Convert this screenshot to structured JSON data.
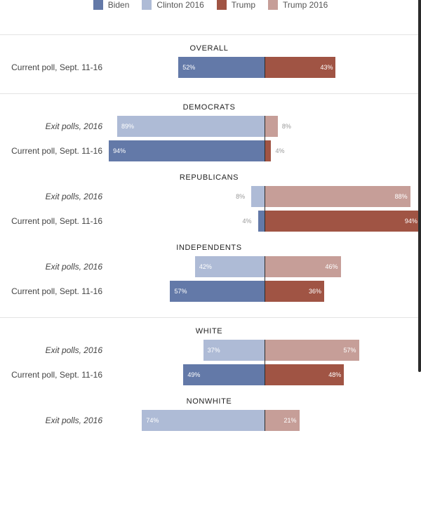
{
  "legend": [
    {
      "label": "Biden",
      "color": "#6379a8"
    },
    {
      "label": "Clinton 2016",
      "color": "#aebbd6"
    },
    {
      "label": "Trump",
      "color": "#a05444"
    },
    {
      "label": "Trump 2016",
      "color": "#c69e98"
    }
  ],
  "chart_data": {
    "type": "bar",
    "orientation": "horizontal-diverging",
    "groups": [
      {
        "title": "OVERALL",
        "divider_before": true,
        "rows": [
          {
            "label": "Current poll, Sept. 11-16",
            "italic": false,
            "dem": 52,
            "rep": 43,
            "dem_series": "Biden",
            "rep_series": "Trump"
          }
        ]
      },
      {
        "title": "DEMOCRATS",
        "divider_before": true,
        "rows": [
          {
            "label": "Exit polls, 2016",
            "italic": true,
            "dem": 89,
            "rep": 8,
            "dem_series": "Clinton 2016",
            "rep_series": "Trump 2016"
          },
          {
            "label": "Current poll, Sept. 11-16",
            "italic": false,
            "dem": 94,
            "rep": 4,
            "dem_series": "Biden",
            "rep_series": "Trump"
          }
        ]
      },
      {
        "title": "REPUBLICANS",
        "divider_before": false,
        "rows": [
          {
            "label": "Exit polls, 2016",
            "italic": true,
            "dem": 8,
            "rep": 88,
            "dem_series": "Clinton 2016",
            "rep_series": "Trump 2016"
          },
          {
            "label": "Current poll, Sept. 11-16",
            "italic": false,
            "dem": 4,
            "rep": 94,
            "dem_series": "Biden",
            "rep_series": "Trump"
          }
        ]
      },
      {
        "title": "INDEPENDENTS",
        "divider_before": false,
        "rows": [
          {
            "label": "Exit polls, 2016",
            "italic": true,
            "dem": 42,
            "rep": 46,
            "dem_series": "Clinton 2016",
            "rep_series": "Trump 2016"
          },
          {
            "label": "Current poll, Sept. 11-16",
            "italic": false,
            "dem": 57,
            "rep": 36,
            "dem_series": "Biden",
            "rep_series": "Trump"
          }
        ]
      },
      {
        "title": "WHITE",
        "divider_before": true,
        "rows": [
          {
            "label": "Exit polls, 2016",
            "italic": true,
            "dem": 37,
            "rep": 57,
            "dem_series": "Clinton 2016",
            "rep_series": "Trump 2016"
          },
          {
            "label": "Current poll, Sept. 11-16",
            "italic": false,
            "dem": 49,
            "rep": 48,
            "dem_series": "Biden",
            "rep_series": "Trump"
          }
        ]
      },
      {
        "title": "NONWHITE",
        "divider_before": false,
        "rows": [
          {
            "label": "Exit polls, 2016",
            "italic": true,
            "dem": 74,
            "rep": 21,
            "dem_series": "Clinton 2016",
            "rep_series": "Trump 2016"
          }
        ]
      }
    ]
  }
}
